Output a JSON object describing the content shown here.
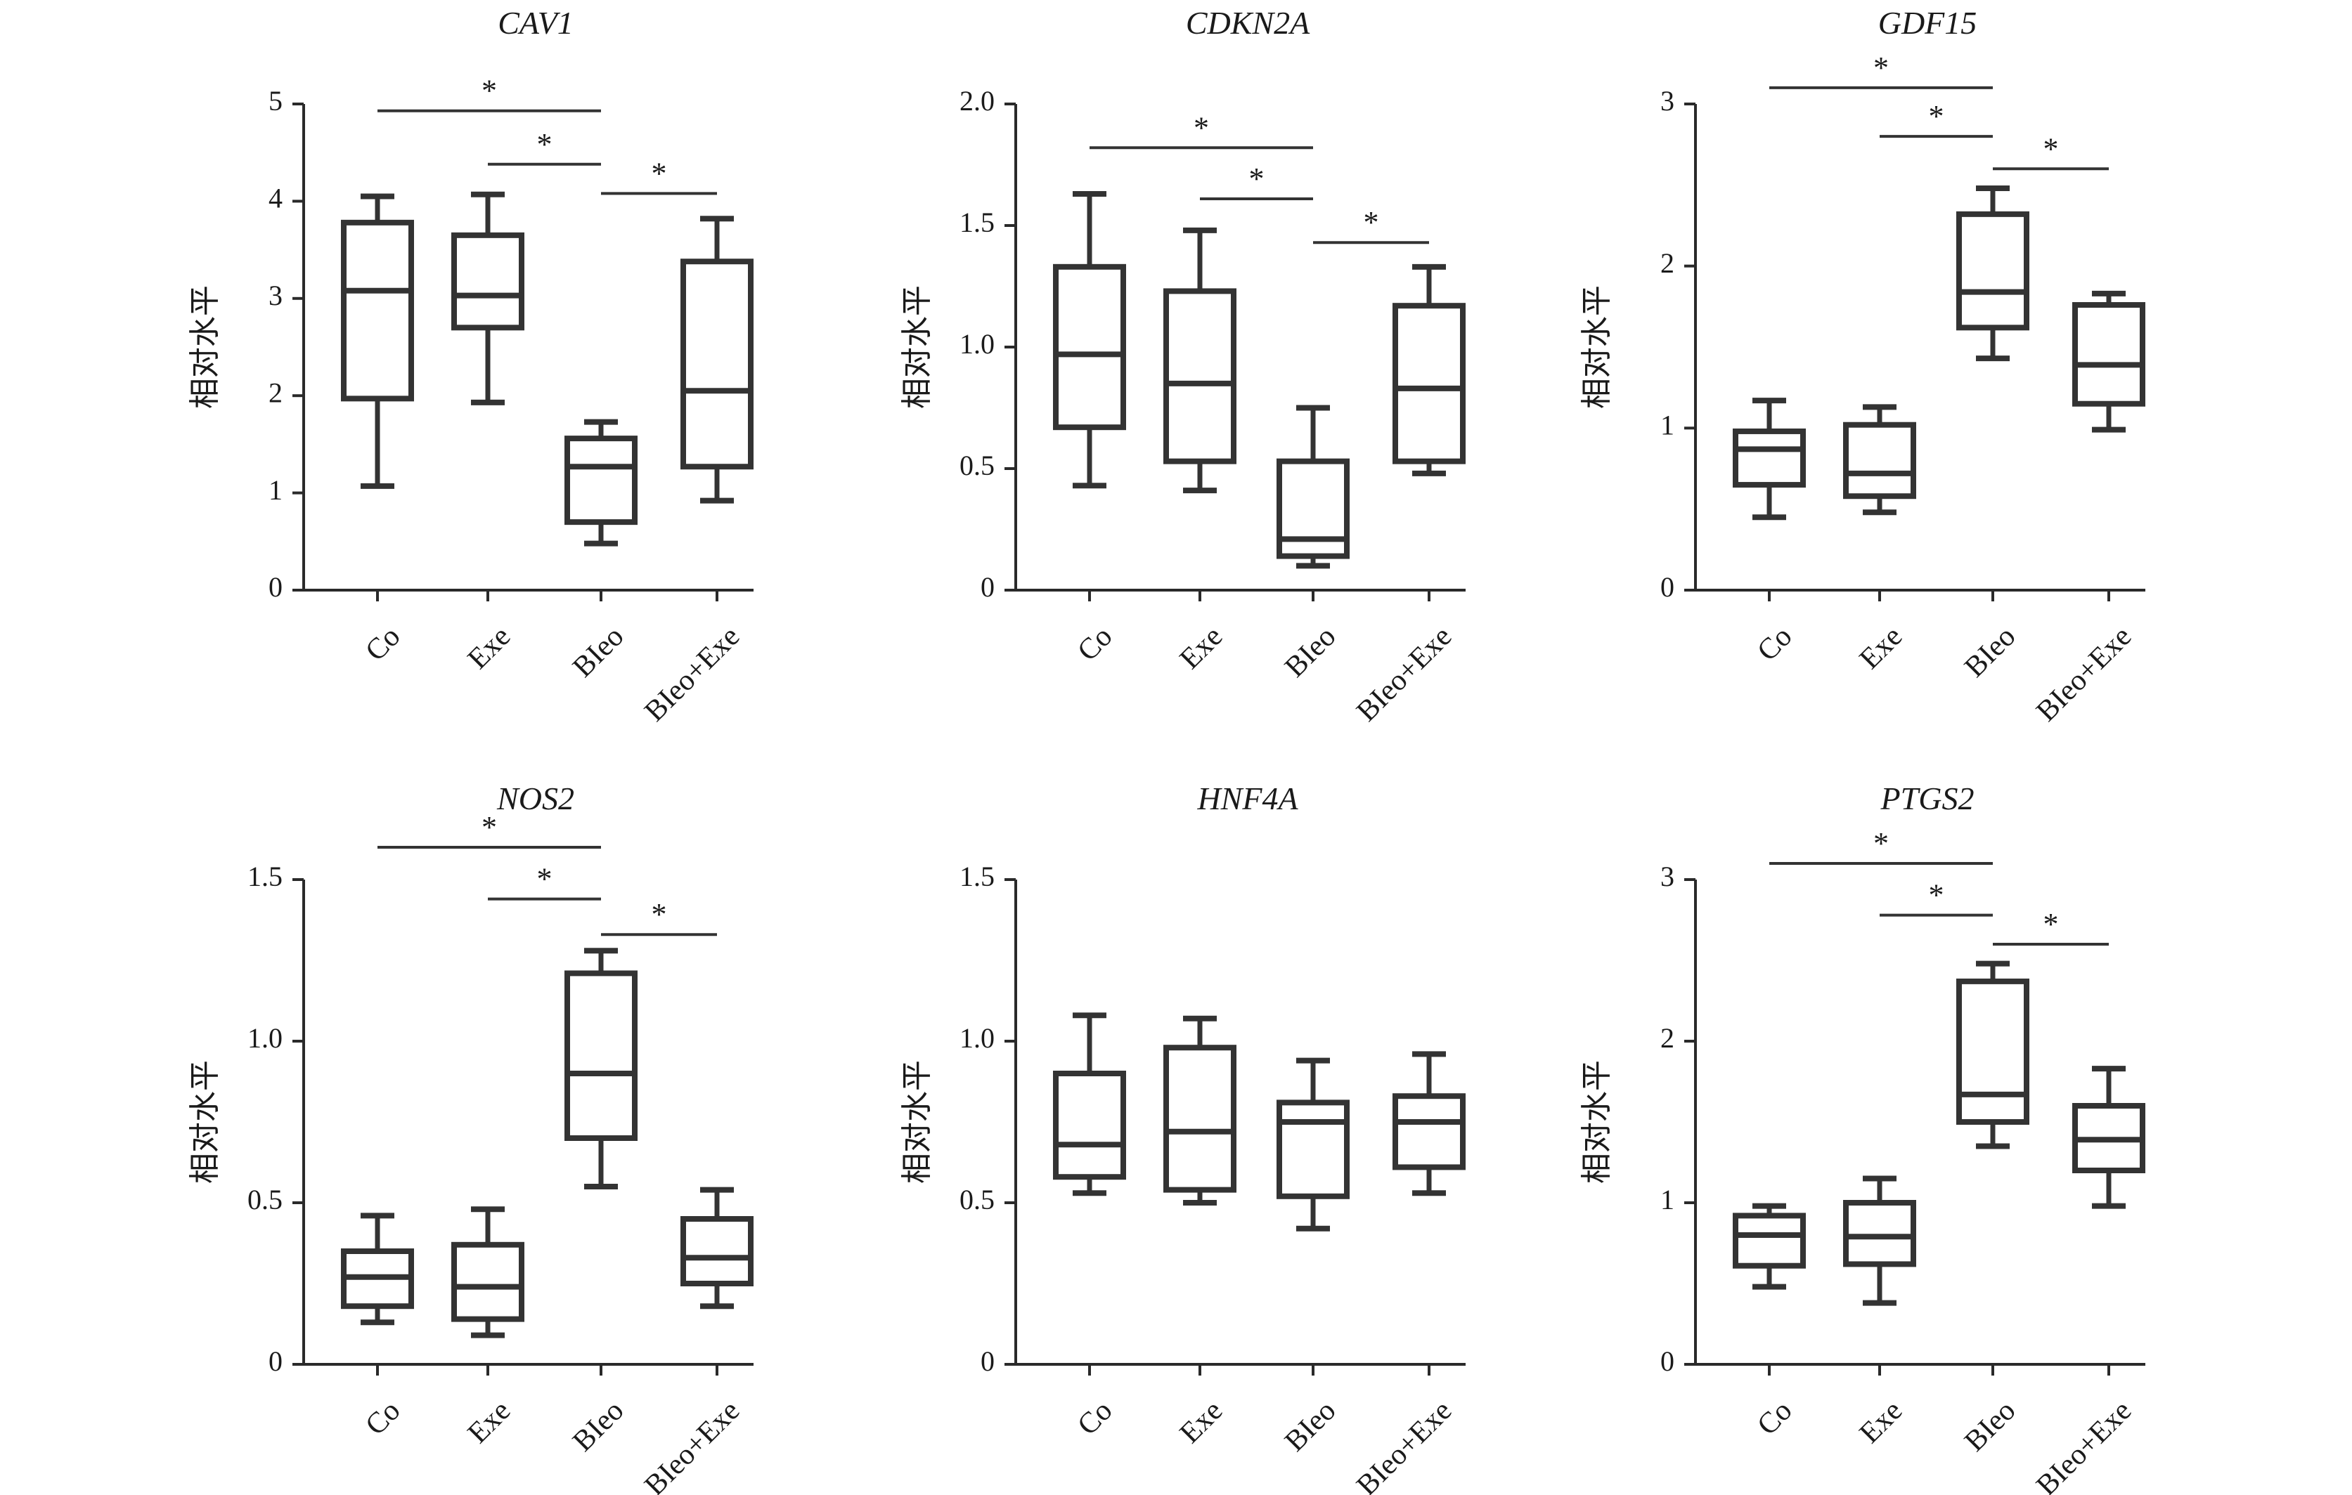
{
  "ylabel": "相对水平",
  "chart_data": [
    {
      "type": "box",
      "title": "CAV1",
      "categories": [
        "Co",
        "Exe",
        "BIeo",
        "BIeo+Exe"
      ],
      "ylim": [
        0,
        5
      ],
      "yticks": [
        0,
        1,
        2,
        3,
        4,
        5
      ],
      "ytick_labels": [
        "0",
        "1",
        "2",
        "3",
        "4",
        "5"
      ],
      "boxes": [
        {
          "min": 1.07,
          "q1": 1.97,
          "median": 3.08,
          "q3": 3.78,
          "max": 4.05
        },
        {
          "min": 1.93,
          "q1": 2.7,
          "median": 3.03,
          "q3": 3.65,
          "max": 4.07
        },
        {
          "min": 0.48,
          "q1": 0.7,
          "median": 1.27,
          "q3": 1.56,
          "max": 1.73
        },
        {
          "min": 0.92,
          "q1": 1.27,
          "median": 2.05,
          "q3": 3.38,
          "max": 3.82
        }
      ],
      "significance": [
        {
          "from": 0,
          "to": 2,
          "y": 4.93,
          "label": "*"
        },
        {
          "from": 1,
          "to": 2,
          "y": 4.38,
          "label": "*"
        },
        {
          "from": 2,
          "to": 3,
          "y": 4.08,
          "label": "*"
        }
      ]
    },
    {
      "type": "box",
      "title": "CDKN2A",
      "categories": [
        "Co",
        "Exe",
        "BIeo",
        "BIeo+Exe"
      ],
      "ylim": [
        0,
        2
      ],
      "yticks": [
        0,
        0.5,
        1.0,
        1.5,
        2.0
      ],
      "ytick_labels": [
        "0",
        "0.5",
        "1.0",
        "1.5",
        "2.0"
      ],
      "boxes": [
        {
          "min": 0.43,
          "q1": 0.67,
          "median": 0.97,
          "q3": 1.33,
          "max": 1.63
        },
        {
          "min": 0.41,
          "q1": 0.53,
          "median": 0.85,
          "q3": 1.23,
          "max": 1.48
        },
        {
          "min": 0.1,
          "q1": 0.14,
          "median": 0.21,
          "q3": 0.53,
          "max": 0.75
        },
        {
          "min": 0.48,
          "q1": 0.53,
          "median": 0.83,
          "q3": 1.17,
          "max": 1.33
        }
      ],
      "significance": [
        {
          "from": 0,
          "to": 2,
          "y": 1.82,
          "label": "*"
        },
        {
          "from": 1,
          "to": 2,
          "y": 1.61,
          "label": "*"
        },
        {
          "from": 2,
          "to": 3,
          "y": 1.43,
          "label": "*"
        }
      ]
    },
    {
      "type": "box",
      "title": "GDF15",
      "categories": [
        "Co",
        "Exe",
        "BIeo",
        "BIeo+Exe"
      ],
      "ylim": [
        0,
        3
      ],
      "yticks": [
        0,
        1,
        2,
        3
      ],
      "ytick_labels": [
        "0",
        "1",
        "2",
        "3"
      ],
      "boxes": [
        {
          "min": 0.45,
          "q1": 0.65,
          "median": 0.87,
          "q3": 0.98,
          "max": 1.17
        },
        {
          "min": 0.48,
          "q1": 0.58,
          "median": 0.72,
          "q3": 1.02,
          "max": 1.13
        },
        {
          "min": 1.43,
          "q1": 1.62,
          "median": 1.84,
          "q3": 2.32,
          "max": 2.48
        },
        {
          "min": 0.99,
          "q1": 1.15,
          "median": 1.39,
          "q3": 1.76,
          "max": 1.83
        }
      ],
      "significance": [
        {
          "from": 0,
          "to": 2,
          "y": 3.1,
          "label": "*"
        },
        {
          "from": 1,
          "to": 2,
          "y": 2.8,
          "label": "*"
        },
        {
          "from": 2,
          "to": 3,
          "y": 2.6,
          "label": "*"
        }
      ]
    },
    {
      "type": "box",
      "title": "NOS2",
      "categories": [
        "Co",
        "Exe",
        "BIeo",
        "BIeo+Exe"
      ],
      "ylim": [
        0,
        1.5
      ],
      "yticks": [
        0,
        0.5,
        1.0,
        1.5
      ],
      "ytick_labels": [
        "0",
        "0.5",
        "1.0",
        "1.5"
      ],
      "boxes": [
        {
          "min": 0.13,
          "q1": 0.18,
          "median": 0.27,
          "q3": 0.35,
          "max": 0.46
        },
        {
          "min": 0.09,
          "q1": 0.14,
          "median": 0.24,
          "q3": 0.37,
          "max": 0.48
        },
        {
          "min": 0.55,
          "q1": 0.7,
          "median": 0.9,
          "q3": 1.21,
          "max": 1.28
        },
        {
          "min": 0.18,
          "q1": 0.25,
          "median": 0.33,
          "q3": 0.45,
          "max": 0.54
        }
      ],
      "significance": [
        {
          "from": 0,
          "to": 2,
          "y": 1.6,
          "label": "*"
        },
        {
          "from": 1,
          "to": 2,
          "y": 1.44,
          "label": "*"
        },
        {
          "from": 2,
          "to": 3,
          "y": 1.33,
          "label": "*"
        }
      ]
    },
    {
      "type": "box",
      "title": "HNF4A",
      "categories": [
        "Co",
        "Exe",
        "BIeo",
        "BIeo+Exe"
      ],
      "ylim": [
        0,
        1.5
      ],
      "yticks": [
        0,
        0.5,
        1.0,
        1.5
      ],
      "ytick_labels": [
        "0",
        "0.5",
        "1.0",
        "1.5"
      ],
      "boxes": [
        {
          "min": 0.53,
          "q1": 0.58,
          "median": 0.68,
          "q3": 0.9,
          "max": 1.08
        },
        {
          "min": 0.5,
          "q1": 0.54,
          "median": 0.72,
          "q3": 0.98,
          "max": 1.07
        },
        {
          "min": 0.42,
          "q1": 0.52,
          "median": 0.75,
          "q3": 0.81,
          "max": 0.94
        },
        {
          "min": 0.53,
          "q1": 0.61,
          "median": 0.75,
          "q3": 0.83,
          "max": 0.96
        }
      ],
      "significance": []
    },
    {
      "type": "box",
      "title": "PTGS2",
      "categories": [
        "Co",
        "Exe",
        "BIeo",
        "BIeo+Exe"
      ],
      "ylim": [
        0,
        3
      ],
      "yticks": [
        0,
        1,
        2,
        3
      ],
      "ytick_labels": [
        "0",
        "1",
        "2",
        "3"
      ],
      "boxes": [
        {
          "min": 0.48,
          "q1": 0.61,
          "median": 0.8,
          "q3": 0.92,
          "max": 0.98
        },
        {
          "min": 0.38,
          "q1": 0.62,
          "median": 0.79,
          "q3": 1.0,
          "max": 1.15
        },
        {
          "min": 1.35,
          "q1": 1.5,
          "median": 1.67,
          "q3": 2.37,
          "max": 2.48
        },
        {
          "min": 0.98,
          "q1": 1.2,
          "median": 1.39,
          "q3": 1.6,
          "max": 1.83
        }
      ],
      "significance": [
        {
          "from": 0,
          "to": 2,
          "y": 3.1,
          "label": "*"
        },
        {
          "from": 1,
          "to": 2,
          "y": 2.78,
          "label": "*"
        },
        {
          "from": 2,
          "to": 3,
          "y": 2.6,
          "label": "*"
        }
      ]
    }
  ]
}
